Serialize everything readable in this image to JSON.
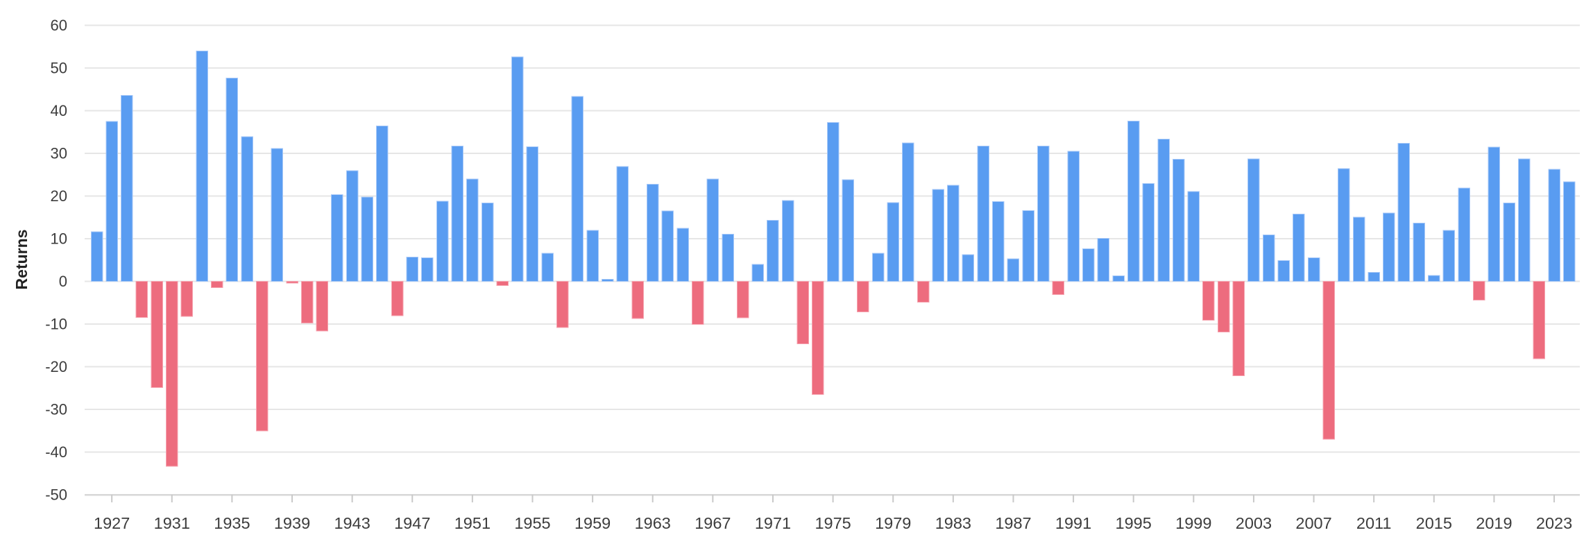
{
  "chart_data": {
    "type": "bar",
    "title": "",
    "xlabel": "",
    "ylabel": "Returns",
    "ylim": [
      -50,
      60
    ],
    "grid": "horizontal-only",
    "legend": "none",
    "y_ticks": [
      60,
      50,
      40,
      30,
      20,
      10,
      0,
      -10,
      -20,
      -30,
      -40,
      -50
    ],
    "x_tick_labels": [
      1927,
      1931,
      1935,
      1939,
      1943,
      1947,
      1951,
      1955,
      1959,
      1963,
      1967,
      1971,
      1975,
      1979,
      1983,
      1987,
      1991,
      1995,
      1999,
      2003,
      2007,
      2011,
      2015,
      2019,
      2023
    ],
    "colors": {
      "positive_bar": "#599CF1",
      "positive_bar_edge": "#A9CAF8",
      "negative_bar": "#ED6C7E",
      "negative_bar_edge": "#F6A4B0",
      "gridline": "#e6e6e6",
      "axis_line": "#d7d7d7",
      "tick_mark": "#c9c9c9",
      "tick_label": "#3d3d3d",
      "axis_title": "#222222",
      "background": "#ffffff"
    },
    "years": [
      1926,
      1927,
      1928,
      1929,
      1930,
      1931,
      1932,
      1933,
      1934,
      1935,
      1936,
      1937,
      1938,
      1939,
      1940,
      1941,
      1942,
      1943,
      1944,
      1945,
      1946,
      1947,
      1948,
      1949,
      1950,
      1951,
      1952,
      1953,
      1954,
      1955,
      1956,
      1957,
      1958,
      1959,
      1960,
      1961,
      1962,
      1963,
      1964,
      1965,
      1966,
      1967,
      1968,
      1969,
      1970,
      1971,
      1972,
      1973,
      1974,
      1975,
      1976,
      1977,
      1978,
      1979,
      1980,
      1981,
      1982,
      1983,
      1984,
      1985,
      1986,
      1987,
      1988,
      1989,
      1990,
      1991,
      1992,
      1993,
      1994,
      1995,
      1996,
      1997,
      1998,
      1999,
      2000,
      2001,
      2002,
      2003,
      2004,
      2005,
      2006,
      2007,
      2008,
      2009,
      2010,
      2011,
      2012,
      2013,
      2014,
      2015,
      2016,
      2017,
      2018,
      2019,
      2020,
      2021,
      2022,
      2023,
      2024
    ],
    "values": [
      11.62,
      37.49,
      43.61,
      -8.42,
      -24.9,
      -43.34,
      -8.19,
      53.99,
      -1.44,
      47.67,
      33.92,
      -35.03,
      31.12,
      -0.41,
      -9.78,
      -11.59,
      20.34,
      25.9,
      19.75,
      36.44,
      -8.07,
      5.71,
      5.5,
      18.79,
      31.71,
      24.02,
      18.37,
      -0.99,
      52.62,
      31.56,
      6.56,
      -10.78,
      43.36,
      11.96,
      0.47,
      26.89,
      -8.73,
      22.8,
      16.48,
      12.45,
      -10.06,
      23.98,
      11.06,
      -8.5,
      4.01,
      14.31,
      18.98,
      -14.66,
      -26.47,
      37.2,
      23.84,
      -7.18,
      6.56,
      18.44,
      32.42,
      -4.91,
      21.55,
      22.56,
      6.27,
      31.73,
      18.67,
      5.25,
      16.61,
      31.69,
      -3.1,
      30.47,
      7.62,
      10.08,
      1.32,
      37.58,
      22.96,
      33.36,
      28.58,
      21.04,
      -9.1,
      -11.89,
      -22.1,
      28.68,
      10.88,
      4.91,
      15.79,
      5.49,
      -37,
      26.46,
      15.06,
      2.11,
      16,
      32.39,
      13.69,
      1.38,
      11.96,
      21.83,
      -4.38,
      31.49,
      18.4,
      28.71,
      -18.11,
      26.29,
      23.31
    ]
  }
}
